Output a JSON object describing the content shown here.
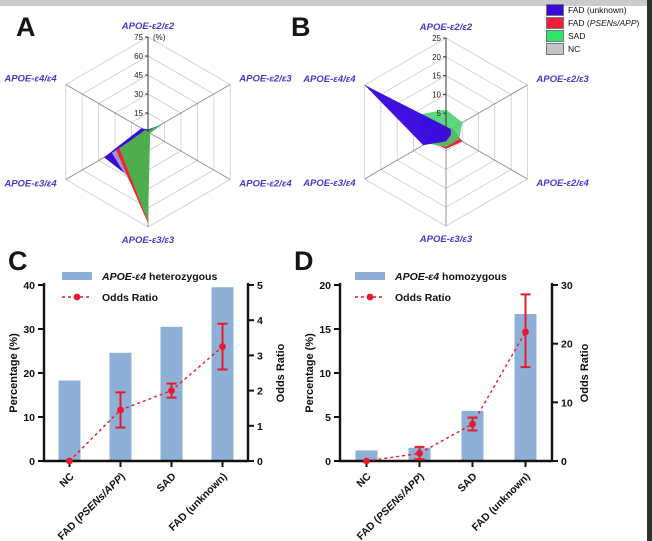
{
  "letters": {
    "a": "A",
    "b": "B",
    "c": "C",
    "d": "D"
  },
  "colors": {
    "fad_unknown_blue": "#3a07e0",
    "fad_psen_red": "#f52038",
    "sad_green": "#2ee66e",
    "nc_gray": "#c3c3ca",
    "bar_blue": "#8fb0d6",
    "odds_red": "#e8192c",
    "radar_label_violet": "#4639d0"
  },
  "radar_legend": {
    "items": [
      {
        "name": "fad-unknown",
        "pre": "FAD (unknown)",
        "italic": "",
        "post": "",
        "color": "#3a07e0"
      },
      {
        "name": "fad-psen",
        "pre": "FAD (",
        "italic": "PSENs/APP",
        "post": ")",
        "color": "#f52038"
      },
      {
        "name": "sad",
        "pre": "SAD",
        "italic": "",
        "post": "",
        "color": "#2ee66e"
      },
      {
        "name": "nc",
        "pre": "NC",
        "italic": "",
        "post": "",
        "color": "#c3c3ca"
      }
    ]
  },
  "chart_data": [
    {
      "id": "A",
      "type": "radar",
      "axes": [
        "APOE-ε2/ε2",
        "APOE-ε2/ε3",
        "APOE-ε2/ε4",
        "APOE-ε3/ε3",
        "APOE-ε3/ε4",
        "APOE-ε4/ε4"
      ],
      "max": 75,
      "rings": [
        15,
        30,
        45,
        60,
        75
      ],
      "unit": "(%)",
      "series": [
        {
          "name": "FAD (unknown)",
          "color": "#3a07e0",
          "opacity": 1,
          "values": [
            2,
            11,
            1,
            47,
            40,
            6
          ]
        },
        {
          "name": "NC",
          "color": "#b9bac4",
          "opacity": 0.8,
          "values": [
            1,
            13,
            1,
            63,
            33,
            2
          ]
        },
        {
          "name": "FAD (PSENs/APP)",
          "color": "#f52038",
          "opacity": 1,
          "values": [
            1,
            9,
            1,
            72,
            29,
            2
          ]
        },
        {
          "name": "SAD",
          "color": "#45b64e",
          "opacity": 0.95,
          "values": [
            1,
            16,
            2,
            71,
            26,
            3
          ]
        }
      ]
    },
    {
      "id": "B",
      "type": "radar",
      "axes": [
        "APOE-ε2/ε2",
        "APOE-ε2/ε3",
        "APOE-ε2/ε4",
        "APOE-ε3/ε3",
        "APOE-ε3/ε4",
        "APOE-ε4/ε4"
      ],
      "max": 25,
      "rings": [
        5,
        10,
        15,
        20,
        25
      ],
      "unit": "",
      "series": [
        {
          "name": "NC",
          "color": "#b9bac4",
          "opacity": 0.9,
          "values": [
            1,
            2,
            1,
            3,
            3,
            1
          ]
        },
        {
          "name": "FAD (PSENs/APP)",
          "color": "#f52038",
          "opacity": 1,
          "values": [
            1,
            2,
            5,
            4.5,
            5,
            8
          ]
        },
        {
          "name": "SAD",
          "color": "#3fd06a",
          "opacity": 0.85,
          "values": [
            6,
            5,
            4,
            4,
            6,
            9
          ]
        },
        {
          "name": "FAD (unknown)",
          "color": "#3a07e0",
          "opacity": 0.97,
          "values": [
            1.5,
            1.5,
            1.5,
            2.5,
            7,
            25
          ]
        }
      ]
    },
    {
      "id": "C",
      "type": "bar-line",
      "legend_bar_italic": "APOE-ε4",
      "legend_bar_rest": " heterozygous",
      "legend_line": "Odds Ratio",
      "categories": [
        "NC",
        "FAD (PSENs/APP)",
        "SAD",
        "FAD (unknown)"
      ],
      "italic_token": "PSENs/APP",
      "bar_values": [
        18.3,
        24.6,
        30.5,
        39.5
      ],
      "odds_ratio": [
        {
          "or": 0,
          "lo": null,
          "hi": null
        },
        {
          "or": 1.45,
          "lo": 0.95,
          "hi": 1.95
        },
        {
          "or": 2.0,
          "lo": 1.8,
          "hi": 2.2
        },
        {
          "or": 3.25,
          "lo": 2.6,
          "hi": 3.9
        }
      ],
      "left_axis": {
        "label": "Percentage  (%)",
        "ticks": [
          0,
          10,
          20,
          30,
          40
        ],
        "max": 40
      },
      "right_axis": {
        "label": "Odds Ratio",
        "ticks": [
          0,
          1,
          2,
          3,
          4,
          5
        ],
        "max": 5
      },
      "bar_color": "#8fb0d6",
      "line_color": "#e8192c"
    },
    {
      "id": "D",
      "type": "bar-line",
      "legend_bar_italic": "APOE-ε4",
      "legend_bar_rest": " homozygous",
      "legend_line": "Odds Ratio",
      "categories": [
        "NC",
        "FAD (PSENs/APP)",
        "SAD",
        "FAD (unknown)"
      ],
      "italic_token": "PSENs/APP",
      "bar_values": [
        1.2,
        1.5,
        5.7,
        16.7
      ],
      "odds_ratio": [
        {
          "or": 0,
          "lo": null,
          "hi": null
        },
        {
          "or": 1.3,
          "lo": 0.3,
          "hi": 2.4
        },
        {
          "or": 6.3,
          "lo": 5.2,
          "hi": 7.4
        },
        {
          "or": 22,
          "lo": 16,
          "hi": 28.4
        }
      ],
      "left_axis": {
        "label": "Percentage  (%)",
        "ticks": [
          0,
          5,
          10,
          15,
          20
        ],
        "max": 20
      },
      "right_axis": {
        "label": "Odds Ratio",
        "ticks": [
          0,
          10,
          20,
          30
        ],
        "max": 30
      },
      "bar_color": "#8fb0d6",
      "line_color": "#e8192c"
    }
  ]
}
